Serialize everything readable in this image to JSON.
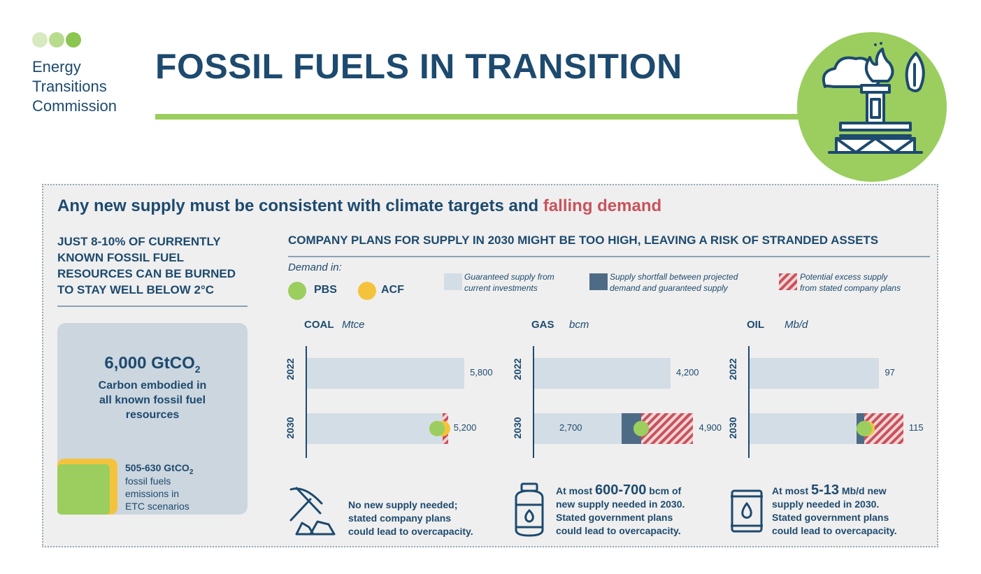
{
  "header": {
    "org_name": "Energy Transitions Commission",
    "org_lines": [
      "Energy",
      "Transitions",
      "Commission"
    ],
    "title": "FOSSIL FUELS IN TRANSITION"
  },
  "colors": {
    "navy": "#1d4a6e",
    "green": "#9bce5e",
    "yellow": "#f5c33b",
    "red": "#c8535c",
    "light_bar": "#d3dde6",
    "shortfall": "#4e6b85",
    "panel_bg": "#efefef"
  },
  "headline": {
    "main": "Any new supply must be consistent with climate targets and ",
    "emphasis": "falling demand"
  },
  "left": {
    "heading_lines": [
      "JUST 8-10% OF CURRENTLY",
      "KNOWN FOSSIL FUEL",
      "RESOURCES CAN BE BURNED",
      "TO STAY WELL BELOW 2°C"
    ],
    "big_value": "6,000 GtCO",
    "big_sub_script": "2",
    "big_desc_lines": [
      "Carbon embodied in",
      "all known fossil fuel",
      "resources"
    ],
    "small_value": "505-630 GtCO",
    "small_sub_script": "2",
    "small_desc_lines": [
      "fossil fuels",
      "emissions in",
      "ETC scenarios"
    ]
  },
  "right": {
    "heading": "COMPANY PLANS FOR SUPPLY IN 2030 MIGHT BE TOO HIGH, LEAVING A RISK OF STRANDED ASSETS",
    "demand_label": "Demand in:",
    "demand_items": [
      {
        "label": "PBS",
        "color": "#9bce5e"
      },
      {
        "label": "ACF",
        "color": "#f5c33b"
      }
    ],
    "legend": [
      {
        "line1": "Guaranteed supply from",
        "line2": "current investments"
      },
      {
        "line1": "Supply shortfall between projected",
        "line2": "demand and guaranteed supply"
      },
      {
        "line1": "Potential excess supply",
        "line2": "from stated company plans"
      }
    ]
  },
  "charts": [
    {
      "fuel": "COAL",
      "unit": "Mtce",
      "year_top": "2022",
      "year_bottom": "2030",
      "value_2022": 5800,
      "label_2022": "5,800",
      "guaranteed_2030": 5000,
      "shortfall_2030": 0,
      "excess_2030": 200,
      "label_2030_inner": "",
      "label_2030_end": "5,200",
      "pbs": 4800,
      "acf": 5000,
      "scale_max": 6700
    },
    {
      "fuel": "GAS",
      "unit": "bcm",
      "year_top": "2022",
      "year_bottom": "2030",
      "value_2022": 4200,
      "label_2022": "4,200",
      "guaranteed_2030": 2700,
      "shortfall_2030": 600,
      "excess_2030": 1600,
      "label_2030_inner": "2,700",
      "label_2030_end": "4,900",
      "pbs": 3300,
      "acf": 3300,
      "scale_max": 5600
    },
    {
      "fuel": "OIL",
      "unit": "Mb/d",
      "year_top": "2022",
      "year_bottom": "2030",
      "value_2022": 97,
      "label_2022": "97",
      "guaranteed_2030": 80,
      "shortfall_2030": 6,
      "excess_2030": 29,
      "label_2030_inner": "",
      "label_2030_end": "115",
      "pbs": 86,
      "acf": 88,
      "scale_max": 136
    }
  ],
  "bottom_notes": [
    {
      "lines": [
        "No new supply needed;",
        "stated company plans",
        "could lead to overcapacity."
      ]
    },
    {
      "pre": "At most ",
      "big": "600-700",
      "post": " bcm of",
      "lines": [
        "new supply needed in 2030.",
        "Stated government plans",
        "could lead to overcapacity."
      ]
    },
    {
      "pre": "At most ",
      "big": "5-13",
      "post": " Mb/d new",
      "lines": [
        "supply needed in 2030.",
        "Stated government plans",
        "could lead to overcapacity."
      ]
    }
  ]
}
